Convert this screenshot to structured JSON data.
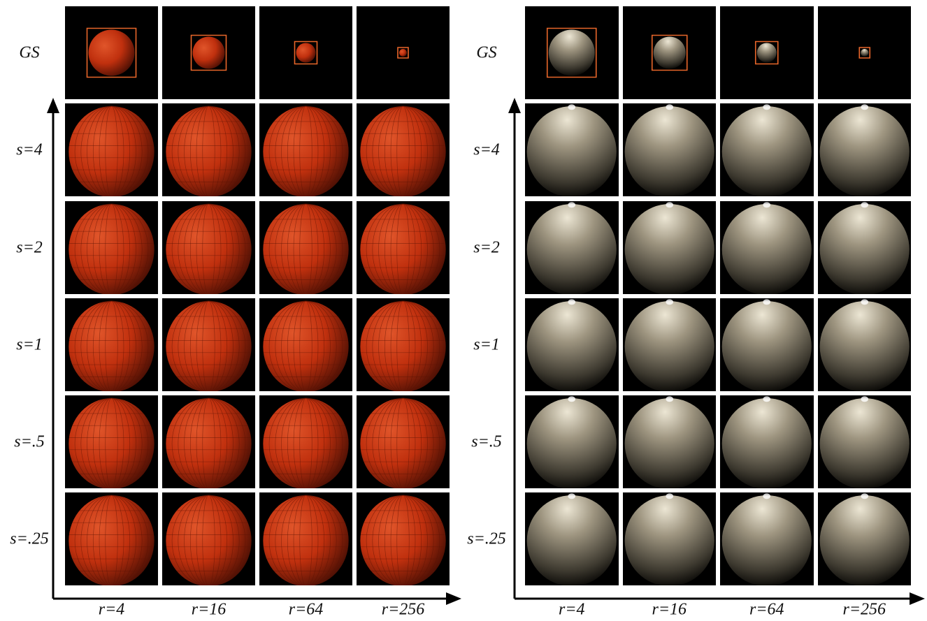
{
  "panels": [
    {
      "name": "red-ball",
      "row_labels": [
        "GS",
        "s=4",
        "s=2",
        "s=1",
        "s=.5",
        "s=.25"
      ],
      "col_labels": [
        "r=4",
        "r=16",
        "r=64",
        "r=256"
      ],
      "ball_color": "#c0300e",
      "box_color": "#e8662a"
    },
    {
      "name": "stone-ball",
      "row_labels": [
        "GS",
        "s=4",
        "s=2",
        "s=1",
        "s=.5",
        "s=.25"
      ],
      "col_labels": [
        "r=4",
        "r=16",
        "r=64",
        "r=256"
      ],
      "ball_color": "#9e9580",
      "box_color": "#e8662a"
    }
  ]
}
